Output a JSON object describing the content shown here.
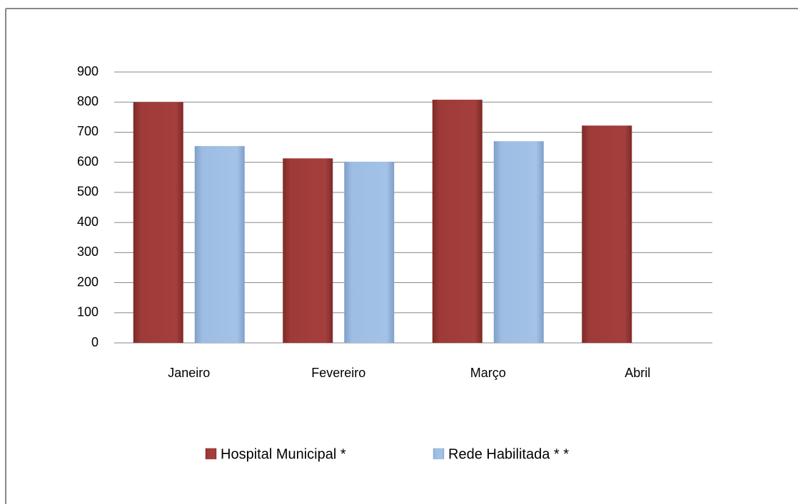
{
  "chart_data": {
    "type": "bar",
    "categories": [
      "Janeiro",
      "Fevereiro",
      "Março",
      "Abril"
    ],
    "series": [
      {
        "name": "Hospital Municipal *",
        "color": "#9e3a38",
        "values": [
          800,
          613,
          808,
          722
        ]
      },
      {
        "name": "Rede Habilitada * *",
        "color": "#9dbde3",
        "values": [
          654,
          602,
          670,
          null
        ]
      }
    ],
    "ylim": [
      0,
      900
    ],
    "yticks": [
      0,
      100,
      200,
      300,
      400,
      500,
      600,
      700,
      800,
      900
    ],
    "grid": true,
    "legend": "bottom"
  }
}
